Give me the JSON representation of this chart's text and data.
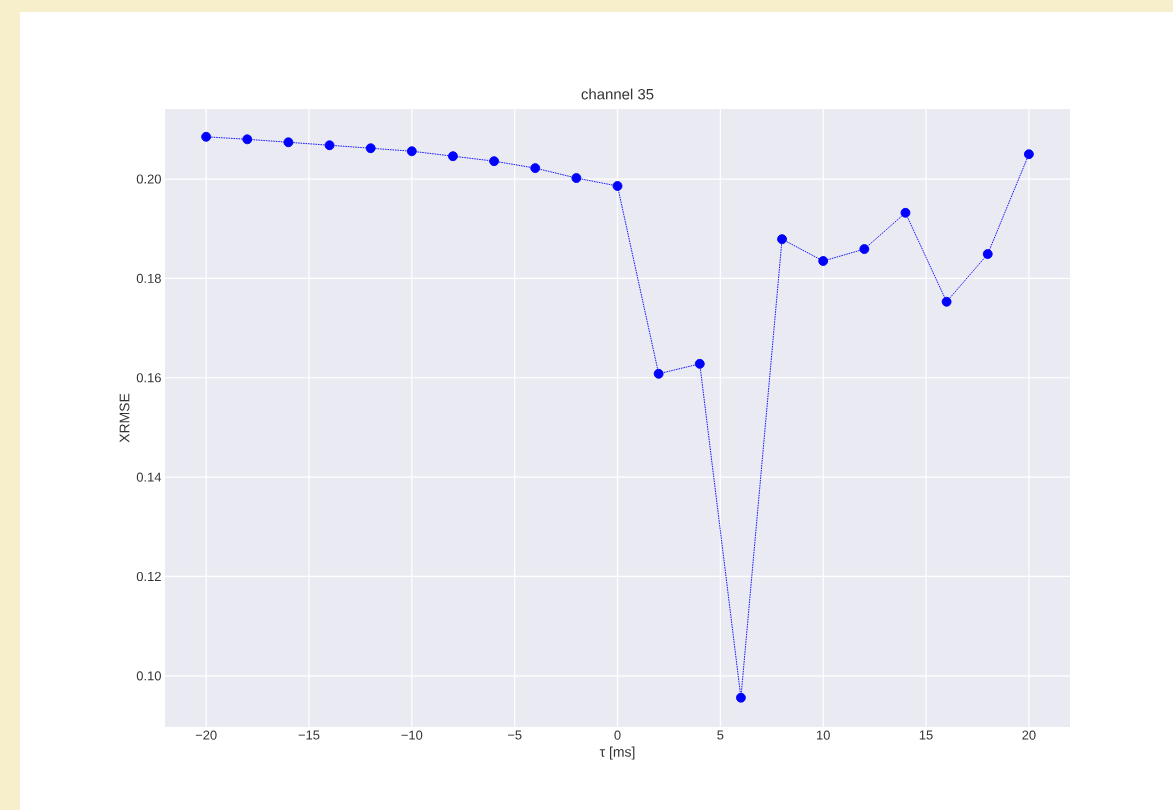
{
  "chart_data": {
    "type": "line",
    "title": "channel 35",
    "xlabel": "τ [ms]",
    "ylabel": "XRMSE",
    "x": [
      -20,
      -18,
      -16,
      -14,
      -12,
      -10,
      -8,
      -6,
      -4,
      -2,
      0,
      2,
      4,
      6,
      8,
      10,
      12,
      14,
      16,
      18,
      20
    ],
    "series": [
      {
        "color": "#0000ff",
        "values": [
          0.2085,
          0.208,
          0.2074,
          0.2068,
          0.2062,
          0.2056,
          0.2046,
          0.2036,
          0.2022,
          0.2002,
          0.1986,
          0.1608,
          0.1628,
          0.0956,
          0.1879,
          0.1835,
          0.1859,
          0.1932,
          0.1753,
          0.1849,
          0.205
        ]
      }
    ],
    "xlim": [
      -22,
      22
    ],
    "ylim": [
      0.0897,
      0.2141
    ],
    "xticks": [
      {
        "value": -20,
        "label": "−20"
      },
      {
        "value": -15,
        "label": "−15"
      },
      {
        "value": -10,
        "label": "−10"
      },
      {
        "value": -5,
        "label": "−5"
      },
      0,
      5,
      10,
      15,
      20
    ],
    "yticks": [
      {
        "value": 0.1,
        "label": "0.10"
      },
      {
        "value": 0.12,
        "label": "0.12"
      },
      {
        "value": 0.14,
        "label": "0.14"
      },
      {
        "value": 0.16,
        "label": "0.16"
      },
      {
        "value": 0.18,
        "label": "0.18"
      },
      {
        "value": 0.2,
        "label": "0.20"
      }
    ],
    "grid": true,
    "marker": "circle",
    "line_style": "dotted"
  }
}
